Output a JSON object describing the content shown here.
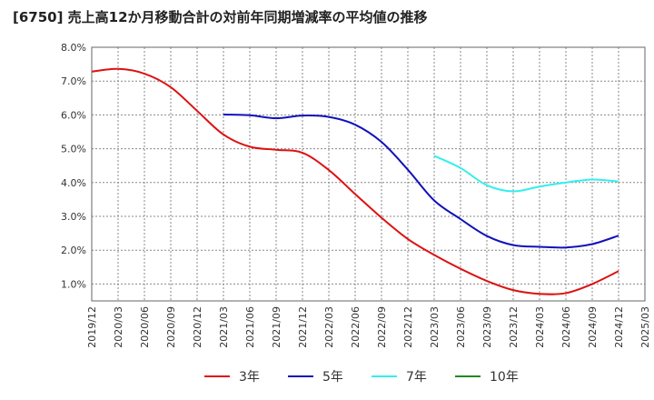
{
  "chart_data": {
    "type": "line",
    "title": "[6750]  売上高12か月移動合計の対前年同期増減率の平均値の推移",
    "xlabel": "",
    "ylabel": "",
    "ylim": [
      0.5,
      8.0
    ],
    "y_ticks": [
      "1.0%",
      "2.0%",
      "3.0%",
      "4.0%",
      "5.0%",
      "6.0%",
      "7.0%",
      "8.0%"
    ],
    "y_tick_values": [
      1.0,
      2.0,
      3.0,
      4.0,
      5.0,
      6.0,
      7.0,
      8.0
    ],
    "x_ticks": [
      "2019/12",
      "2020/03",
      "2020/06",
      "2020/09",
      "2020/12",
      "2021/03",
      "2021/06",
      "2021/09",
      "2021/12",
      "2022/03",
      "2022/06",
      "2022/09",
      "2022/12",
      "2023/03",
      "2023/06",
      "2023/09",
      "2023/12",
      "2024/03",
      "2024/06",
      "2024/09",
      "2024/12",
      "2025/03"
    ],
    "grid": true,
    "legend_position": "bottom",
    "series": [
      {
        "name": "3年",
        "color": "#dd1111",
        "points": [
          [
            0,
            7.28
          ],
          [
            1,
            7.36
          ],
          [
            2,
            7.22
          ],
          [
            3,
            6.82
          ],
          [
            4,
            6.12
          ],
          [
            5,
            5.42
          ],
          [
            6,
            5.06
          ],
          [
            7,
            4.97
          ],
          [
            8,
            4.88
          ],
          [
            9,
            4.37
          ],
          [
            10,
            3.66
          ],
          [
            11,
            2.96
          ],
          [
            12,
            2.33
          ],
          [
            13,
            1.86
          ],
          [
            14,
            1.45
          ],
          [
            15,
            1.09
          ],
          [
            16,
            0.82
          ],
          [
            17,
            0.71
          ],
          [
            18,
            0.73
          ],
          [
            19,
            1.0
          ],
          [
            20,
            1.38
          ]
        ]
      },
      {
        "name": "5年",
        "color": "#1111bb",
        "points": [
          [
            5,
            6.01
          ],
          [
            6,
            5.99
          ],
          [
            7,
            5.9
          ],
          [
            8,
            5.98
          ],
          [
            9,
            5.94
          ],
          [
            10,
            5.71
          ],
          [
            11,
            5.2
          ],
          [
            12,
            4.38
          ],
          [
            13,
            3.47
          ],
          [
            14,
            2.92
          ],
          [
            15,
            2.42
          ],
          [
            16,
            2.15
          ],
          [
            17,
            2.1
          ],
          [
            18,
            2.08
          ],
          [
            19,
            2.18
          ],
          [
            20,
            2.43
          ]
        ]
      },
      {
        "name": "7年",
        "color": "#33eeee",
        "points": [
          [
            13,
            4.79
          ],
          [
            14,
            4.43
          ],
          [
            15,
            3.92
          ],
          [
            16,
            3.74
          ],
          [
            17,
            3.88
          ],
          [
            18,
            4.0
          ],
          [
            19,
            4.09
          ],
          [
            20,
            4.03
          ]
        ]
      },
      {
        "name": "10年",
        "color": "#228822",
        "points": []
      }
    ]
  }
}
